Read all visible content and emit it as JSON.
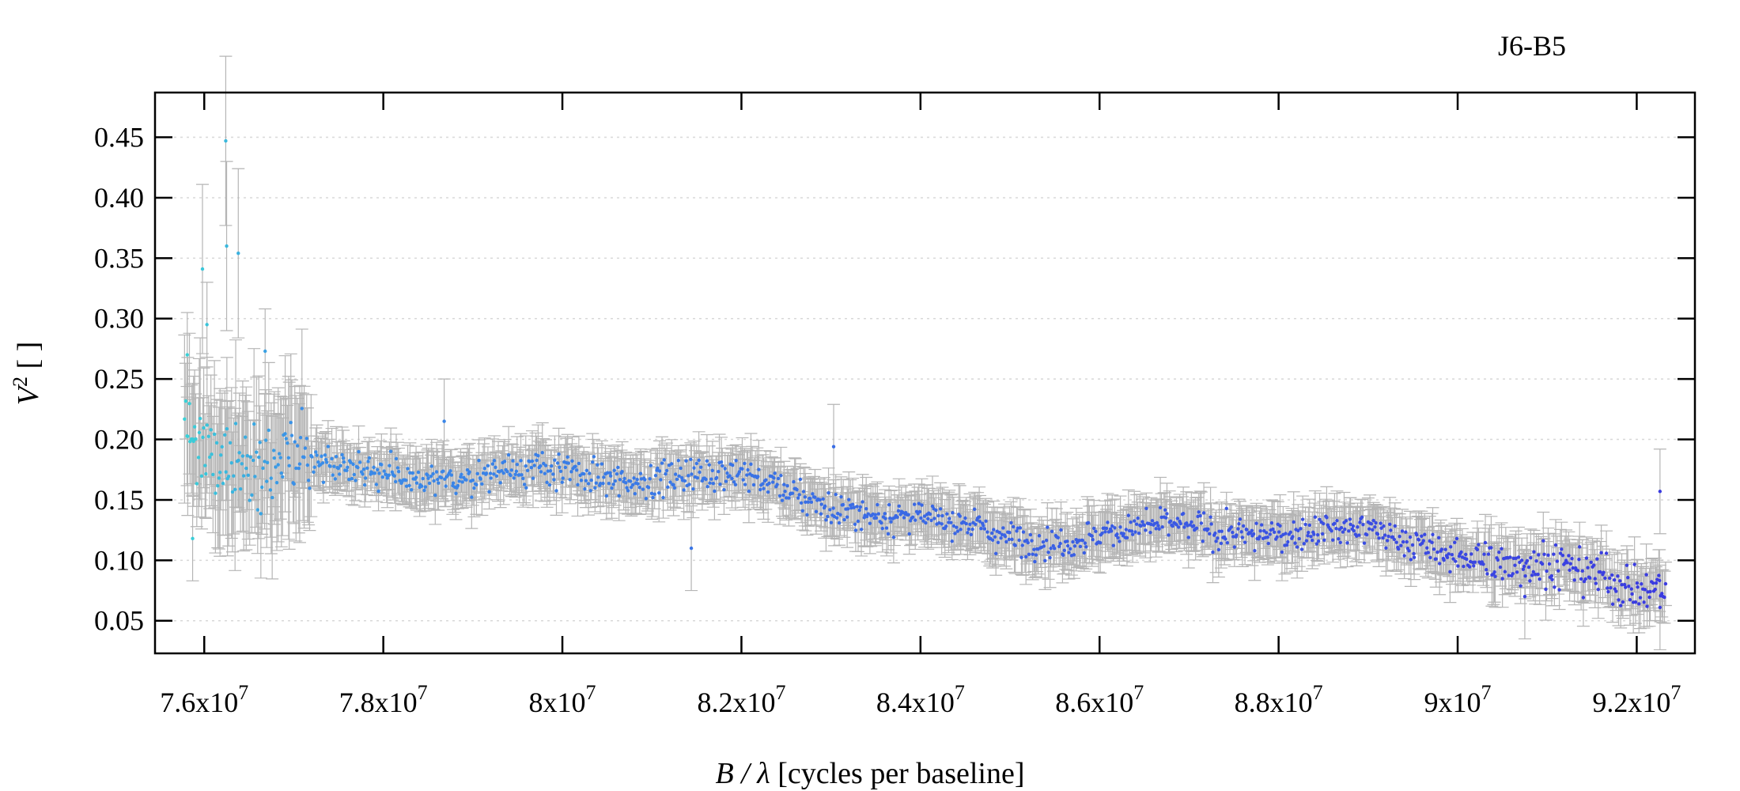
{
  "chart_data": {
    "type": "scatter",
    "title": "J6-B5",
    "xlabel": {
      "italic": "B / λ",
      "rest": " [cycles per baseline]"
    },
    "ylabel": {
      "base": "V",
      "sup": "2",
      "rest": " [ ]"
    },
    "xlim": [
      75450000,
      92650000
    ],
    "ylim": [
      0.023,
      0.487
    ],
    "x_ticks": [
      76000000,
      78000000,
      80000000,
      82000000,
      84000000,
      86000000,
      88000000,
      90000000,
      92000000
    ],
    "x_tick_labels": [
      {
        "mant": "7.6x10",
        "exp": "7"
      },
      {
        "mant": "7.8x10",
        "exp": "7"
      },
      {
        "mant": "8x10",
        "exp": "7"
      },
      {
        "mant": "8.2x10",
        "exp": "7"
      },
      {
        "mant": "8.4x10",
        "exp": "7"
      },
      {
        "mant": "8.6x10",
        "exp": "7"
      },
      {
        "mant": "8.8x10",
        "exp": "7"
      },
      {
        "mant": "9x10",
        "exp": "7"
      },
      {
        "mant": "9.2x10",
        "exp": "7"
      }
    ],
    "y_ticks": [
      0.05,
      0.1,
      0.15,
      0.2,
      0.25,
      0.3,
      0.35,
      0.4,
      0.45
    ],
    "y_tick_labels": [
      "0.05",
      "0.10",
      "0.15",
      "0.20",
      "0.25",
      "0.30",
      "0.35",
      "0.40",
      "0.45"
    ],
    "grid": "horizontal dotted",
    "marker_color_gradient": [
      "#3ad6d6",
      "#3a8ee8",
      "#3a3ae0"
    ],
    "error_bar_color": "#b5b5b5",
    "trend": {
      "description_points_x": [
        75800000,
        76500000,
        78000000,
        79000000,
        80000000,
        81000000,
        82000000,
        83000000,
        84000000,
        85000000,
        86000000,
        87000000,
        88000000,
        89000000,
        90000000,
        91000000,
        92000000,
        92300000
      ],
      "description_points_y": [
        0.205,
        0.19,
        0.185,
        0.175,
        0.165,
        0.16,
        0.155,
        0.148,
        0.14,
        0.133,
        0.128,
        0.122,
        0.115,
        0.108,
        0.105,
        0.1,
        0.09,
        0.095
      ]
    },
    "highlight_points": [
      {
        "x": 75810000,
        "y": 0.27
      },
      {
        "x": 75980000,
        "y": 0.341
      },
      {
        "x": 76030000,
        "y": 0.295
      },
      {
        "x": 76240000,
        "y": 0.447
      },
      {
        "x": 76250000,
        "y": 0.36
      },
      {
        "x": 76380000,
        "y": 0.354
      },
      {
        "x": 76680000,
        "y": 0.273
      },
      {
        "x": 78680000,
        "y": 0.215
      },
      {
        "x": 83030000,
        "y": 0.194
      },
      {
        "x": 81440000,
        "y": 0.11
      },
      {
        "x": 75870000,
        "y": 0.118
      },
      {
        "x": 92260000,
        "y": 0.061
      },
      {
        "x": 92260000,
        "y": 0.157
      },
      {
        "x": 90750000,
        "y": 0.07
      }
    ]
  }
}
